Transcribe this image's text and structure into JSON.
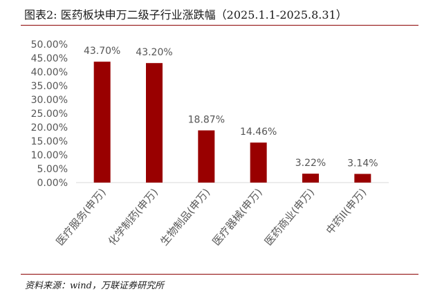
{
  "title": "图表2:  医药板块申万二级子行业涨跌幅（2025.1.1-2025.8.31）",
  "source": "资料来源：wind，万联证券研究所",
  "colors": {
    "bar": "#990000",
    "rule": "#8b0000",
    "axis": "#d9d9d9"
  },
  "chart_data": {
    "type": "bar",
    "categories": [
      "医疗服务(申万)",
      "化学制药(申万)",
      "生物制品(申万)",
      "医疗器械(申万)",
      "医药商业(申万)",
      "中药II(申万)"
    ],
    "values": [
      43.7,
      43.2,
      18.87,
      14.46,
      3.22,
      3.14
    ],
    "data_labels": [
      "43.70%",
      "43.20%",
      "18.87%",
      "14.46%",
      "3.22%",
      "3.14%"
    ],
    "y_ticks": [
      "0.00%",
      "5.00%",
      "10.00%",
      "15.00%",
      "20.00%",
      "25.00%",
      "30.00%",
      "35.00%",
      "40.00%",
      "45.00%",
      "50.00%"
    ],
    "ylim": [
      0,
      50
    ],
    "title": "",
    "xlabel": "",
    "ylabel": "",
    "grid": false,
    "legend": "none"
  }
}
